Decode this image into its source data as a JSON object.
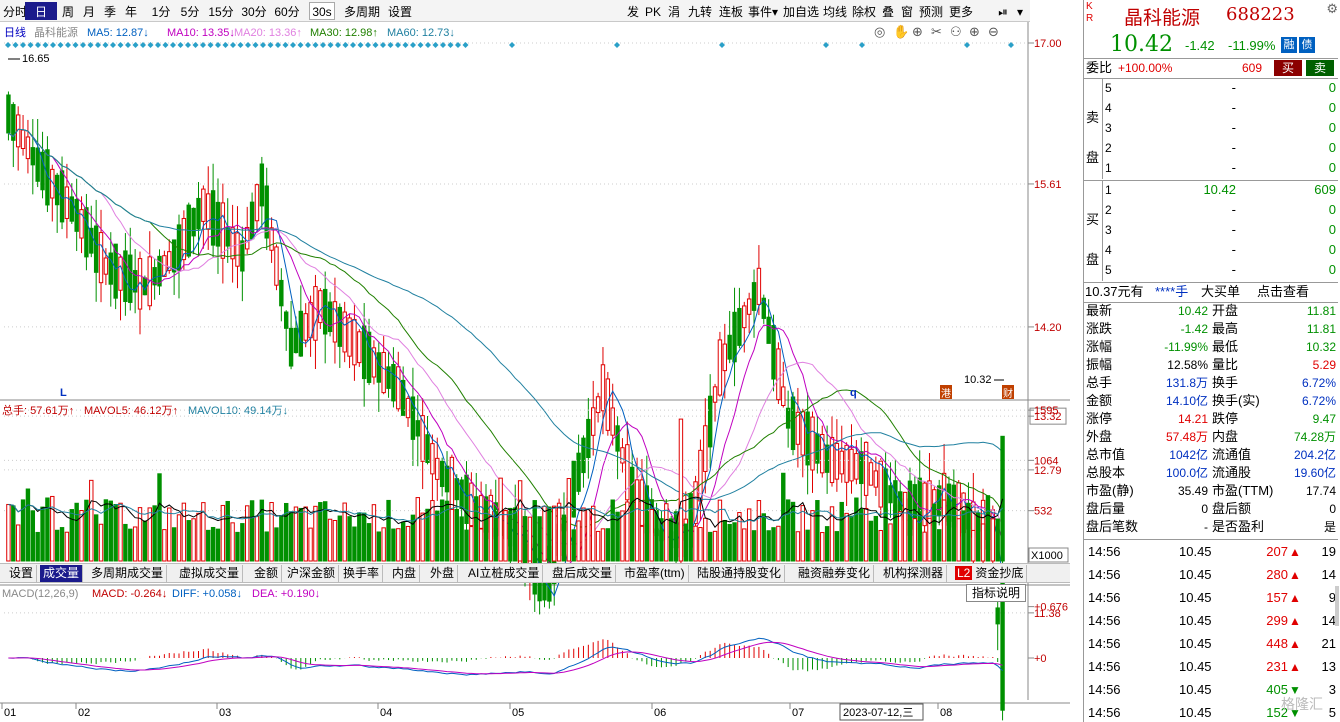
{
  "toolbar": {
    "items": [
      "分时",
      "日",
      "周",
      "月",
      "季",
      "年",
      "1分",
      "5分",
      "15分",
      "30分",
      "60分",
      "30s",
      "多周期",
      "设置"
    ],
    "active": "日",
    "right_items": [
      "发",
      "PK",
      "涓",
      "九转",
      "连板",
      "事件",
      "加自选",
      "均线",
      "除权",
      "叠",
      "窗",
      "预测",
      "更多"
    ]
  },
  "ma_legend": {
    "period": "日线",
    "name": "晶科能源",
    "ma5": "MA5: 12.87↓",
    "ma10": "MA10: 13.35↓",
    "ma20": "MA20: 13.36↑",
    "ma30": "MA30: 12.98↑",
    "ma60": "MA60: 12.73↓"
  },
  "price_axis": [
    "17.00",
    "15.61",
    "14.20",
    "13.32",
    "12.79",
    "11.38"
  ],
  "high_label": "16.65",
  "low_label": "10.32",
  "marker_L": "L",
  "marker_q": "q",
  "tag_gang": "港",
  "tag_cai": "财",
  "vol_legend": {
    "total": "总手: 57.61万↑",
    "mavol5": "MAVOL5: 46.12万↑",
    "mavol10": "MAVOL10: 49.14万↓"
  },
  "vol_axis": [
    "1595",
    "1064",
    "532"
  ],
  "vol_unit": "X1000",
  "tabs": [
    "设置",
    "成交量",
    "多周期成交量",
    "虚拟成交量",
    "金额",
    "沪深金额",
    "换手率",
    "内盘",
    "外盘",
    "AI立桩成交量",
    "盘后成交量",
    "市盈率(ttm)",
    "陆股通持股变化",
    "融资融券变化",
    "机构探测器",
    "资金抄底"
  ],
  "tab_active": "成交量",
  "tab_badge": "L2",
  "tooltip": "指标说明",
  "macd_legend": {
    "name": "MACD(12,26,9)",
    "macd": "MACD: -0.264↓",
    "diff": "DIFF: +0.058↓",
    "dea": "DEA: +0.190↓"
  },
  "macd_axis": [
    "+0.676",
    "+0"
  ],
  "time_axis": [
    "01",
    "02",
    "03",
    "04",
    "05",
    "06",
    "07",
    "08"
  ],
  "cursor_date": "2023-07-12,三",
  "quote": {
    "mark_k": "K",
    "mark_r": "R",
    "name": "晶科能源",
    "code": "688223",
    "price": "10.42",
    "change": "-1.42",
    "pct": "-11.99%",
    "tag1": "融",
    "tag2": "债"
  },
  "weibi": {
    "label": "委比",
    "value": "+100.00%",
    "diff": "609",
    "buy": "买",
    "sell": "卖"
  },
  "sell_side": {
    "label": [
      "卖",
      "盘"
    ],
    "rows": [
      {
        "n": "5",
        "p": "-",
        "v": "0"
      },
      {
        "n": "4",
        "p": "-",
        "v": "0"
      },
      {
        "n": "3",
        "p": "-",
        "v": "0"
      },
      {
        "n": "2",
        "p": "-",
        "v": "0"
      },
      {
        "n": "1",
        "p": "-",
        "v": "0"
      }
    ]
  },
  "buy_side": {
    "label": [
      "买",
      "盘"
    ],
    "rows": [
      {
        "n": "1",
        "p": "10.42",
        "v": "609"
      },
      {
        "n": "2",
        "p": "-",
        "v": "0"
      },
      {
        "n": "3",
        "p": "-",
        "v": "0"
      },
      {
        "n": "4",
        "p": "-",
        "v": "0"
      },
      {
        "n": "5",
        "p": "-",
        "v": "0"
      }
    ]
  },
  "bigorder": {
    "a": "10.37元有",
    "b": "****手",
    "c": "大买单",
    "d": "点击查看"
  },
  "stats": [
    {
      "l1": "最新",
      "v1": "10.42",
      "c1": "grn",
      "l2": "开盘",
      "v2": "11.81",
      "c2": "grn"
    },
    {
      "l1": "涨跌",
      "v1": "-1.42",
      "c1": "grn",
      "l2": "最高",
      "v2": "11.81",
      "c2": "grn"
    },
    {
      "l1": "涨幅",
      "v1": "-11.99%",
      "c1": "grn",
      "l2": "最低",
      "v2": "10.32",
      "c2": "grn"
    },
    {
      "l1": "振幅",
      "v1": "12.58%",
      "c1": "",
      "l2": "量比",
      "v2": "5.29",
      "c2": "red"
    },
    {
      "l1": "总手",
      "v1": "131.8万",
      "c1": "blu",
      "l2": "换手",
      "v2": "6.72%",
      "c2": "blu"
    },
    {
      "l1": "金额",
      "v1": "14.10亿",
      "c1": "blu",
      "l2": "换手(实)",
      "v2": "6.72%",
      "c2": "blu"
    },
    {
      "l1": "涨停",
      "v1": "14.21",
      "c1": "red",
      "l2": "跌停",
      "v2": "9.47",
      "c2": "grn"
    },
    {
      "l1": "外盘",
      "v1": "57.48万",
      "c1": "red",
      "l2": "内盘",
      "v2": "74.28万",
      "c2": "grn"
    },
    {
      "l1": "总市值",
      "v1": "1042亿",
      "c1": "blu",
      "l2": "流通值",
      "v2": "204.2亿",
      "c2": "blu"
    },
    {
      "l1": "总股本",
      "v1": "100.0亿",
      "c1": "blu",
      "l2": "流通股",
      "v2": "19.60亿",
      "c2": "blu"
    },
    {
      "l1": "市盈(静)",
      "v1": "35.49",
      "c1": "",
      "l2": "市盈(TTM)",
      "v2": "17.74",
      "c2": ""
    },
    {
      "l1": "盘后量",
      "v1": "0",
      "c1": "",
      "l2": "盘后额",
      "v2": "0",
      "c2": ""
    },
    {
      "l1": "盘后笔数",
      "v1": "-",
      "c1": "",
      "l2": "是否盈利",
      "v2": "是",
      "c2": ""
    }
  ],
  "ticks": [
    {
      "t": "14:56",
      "p": "10.45",
      "v": "207",
      "d": "up",
      "n": "19"
    },
    {
      "t": "14:56",
      "p": "10.45",
      "v": "280",
      "d": "up",
      "n": "14"
    },
    {
      "t": "14:56",
      "p": "10.45",
      "v": "157",
      "d": "up",
      "n": "9"
    },
    {
      "t": "14:56",
      "p": "10.45",
      "v": "299",
      "d": "up",
      "n": "14"
    },
    {
      "t": "14:56",
      "p": "10.45",
      "v": "448",
      "d": "up",
      "n": "21"
    },
    {
      "t": "14:56",
      "p": "10.45",
      "v": "231",
      "d": "up",
      "n": "13"
    },
    {
      "t": "14:56",
      "p": "10.45",
      "v": "405",
      "d": "down",
      "n": "3"
    },
    {
      "t": "14:56",
      "p": "10.45",
      "v": "152",
      "d": "down",
      "n": "5"
    }
  ],
  "watermark": "格隆汇"
}
